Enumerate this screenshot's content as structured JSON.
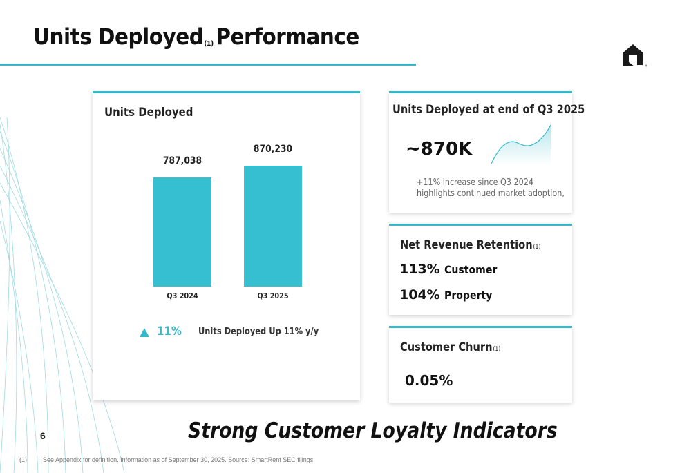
{
  "header": {
    "title_part1": "Units Deployed",
    "title_sup": "(1)",
    "title_part2": "Performance"
  },
  "logo": {
    "icon": "smartrent-logo-icon"
  },
  "units_card": {
    "heading": "Units Deployed",
    "bars": [
      {
        "category": "Q3 2024",
        "value_label": "787,038",
        "value": 787038
      },
      {
        "category": "Q3 2025",
        "value_label": "870,230",
        "value": 870230
      }
    ],
    "growth_icon": "up-triangle-icon",
    "growth_pct": "11%",
    "growth_label": "Units Deployed Up 11% y/y",
    "accent_color": "#35bfd0"
  },
  "end_card": {
    "heading": "Units Deployed at end of Q3 2025",
    "big_value": "~870K",
    "note_line1": "+11% increase since Q3 2024",
    "note_line2": "highlights continued market adoption,"
  },
  "nrr_card": {
    "heading": "Net Revenue Retention",
    "heading_sup": "(1)",
    "rows": [
      {
        "value": "113%",
        "label": "Customer"
      },
      {
        "value": "104%",
        "label": "Property"
      }
    ]
  },
  "churn_card": {
    "heading": "Customer Churn",
    "heading_sup": "(1)",
    "value": "0.05%"
  },
  "footer": {
    "page_number": "6",
    "tagline": "Strong Customer Loyalty Indicators",
    "footnote_mark": "(1)",
    "footnote_text": "See Appendix for definition. Information as of September 30, 2025. Source: SmartRent SEC filings."
  }
}
